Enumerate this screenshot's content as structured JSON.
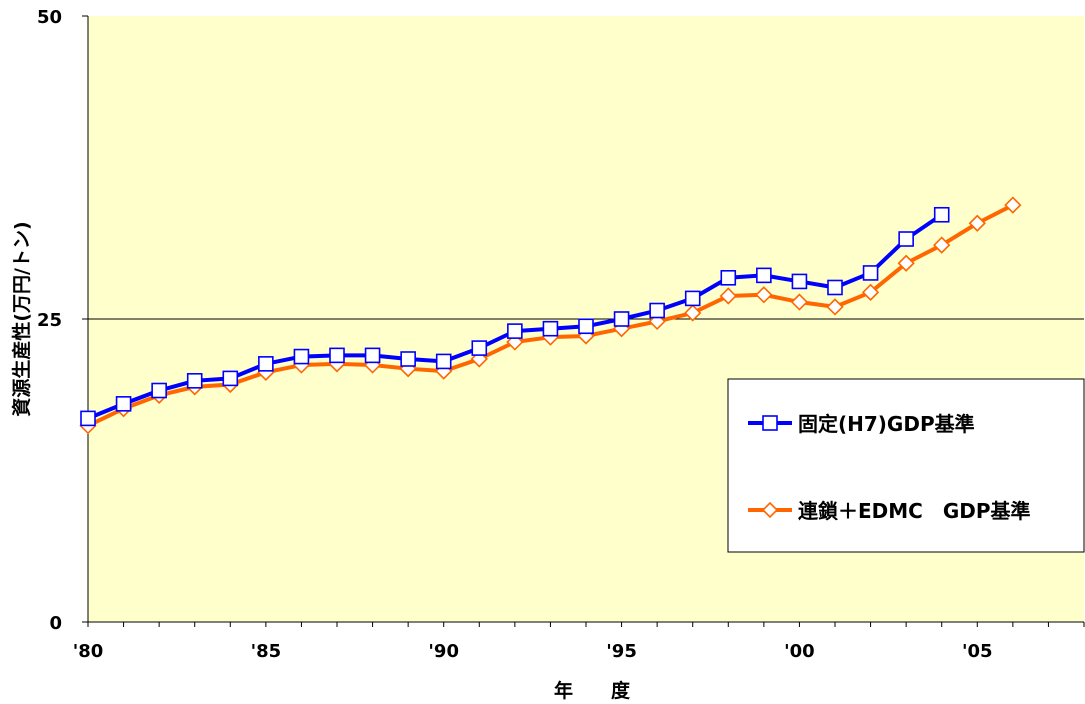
{
  "chart_data": {
    "type": "line",
    "xlabel": "年　　度",
    "ylabel": "資源生産性(万円/トン)",
    "ylim": [
      0,
      50
    ],
    "yticks": [
      "0",
      "25",
      "50"
    ],
    "xlim": [
      1980,
      2008
    ],
    "xticks": [
      {
        "x": 1980,
        "label": "'80"
      },
      {
        "x": 1985,
        "label": "'85"
      },
      {
        "x": 1990,
        "label": "'90"
      },
      {
        "x": 1995,
        "label": "'95"
      },
      {
        "x": 2000,
        "label": "'00"
      },
      {
        "x": 2005,
        "label": "'05"
      }
    ],
    "gridlines_y": [
      25
    ],
    "legend_position": "right",
    "plot_background": "#ffffcc",
    "series": [
      {
        "name": "固定(H7)GDP基準",
        "color": "#0000ff",
        "marker": "square",
        "x": [
          1980,
          1981,
          1982,
          1983,
          1984,
          1985,
          1986,
          1987,
          1988,
          1989,
          1990,
          1991,
          1992,
          1993,
          1994,
          1995,
          1996,
          1997,
          1998,
          1999,
          2000,
          2001,
          2002,
          2003,
          2004
        ],
        "values": [
          16.8,
          18.0,
          19.1,
          19.9,
          20.1,
          21.3,
          21.9,
          22.0,
          22.0,
          21.7,
          21.5,
          22.6,
          24.0,
          24.2,
          24.4,
          25.0,
          25.7,
          26.7,
          28.4,
          28.6,
          28.1,
          27.6,
          28.8,
          31.6,
          33.6
        ]
      },
      {
        "name": "連鎖＋EDMC　GDP基準",
        "color": "#ff6600",
        "marker": "diamond",
        "x": [
          1980,
          1981,
          1982,
          1983,
          1984,
          1985,
          1986,
          1987,
          1988,
          1989,
          1990,
          1991,
          1992,
          1993,
          1994,
          1995,
          1996,
          1997,
          1998,
          1999,
          2000,
          2001,
          2002,
          2003,
          2004,
          2005,
          2006
        ],
        "values": [
          16.2,
          17.6,
          18.7,
          19.4,
          19.6,
          20.6,
          21.2,
          21.3,
          21.2,
          20.9,
          20.7,
          21.7,
          23.1,
          23.5,
          23.6,
          24.2,
          24.8,
          25.5,
          26.9,
          27.0,
          26.4,
          26.0,
          27.2,
          29.6,
          31.1,
          32.9,
          34.4
        ]
      }
    ]
  }
}
